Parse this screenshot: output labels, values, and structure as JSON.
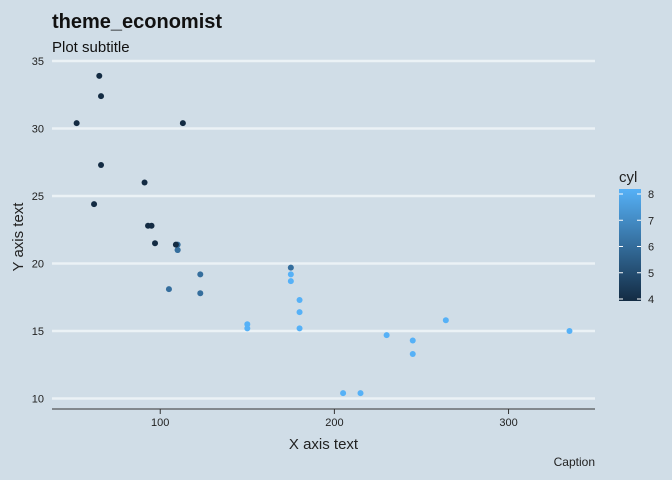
{
  "chart_data": {
    "type": "scatter",
    "title": "theme_economist",
    "subtitle": "Plot subtitle",
    "xlabel": "X axis text",
    "ylabel": "Y axis text",
    "caption": "Caption",
    "xlim": [
      37.85,
      349.65
    ],
    "ylim": [
      9.225,
      35.075
    ],
    "x_ticks": [
      100,
      200,
      300
    ],
    "y_ticks": [
      10,
      15,
      20,
      25,
      30,
      35
    ],
    "grid": "horizontal major",
    "legend": {
      "title": "cyl",
      "position": "right",
      "range": [
        4,
        8
      ],
      "ticks": [
        4,
        5,
        6,
        7,
        8
      ],
      "low_color": "#132B43",
      "high_color": "#56B1F7"
    },
    "points": [
      {
        "x": 110,
        "y": 21.0,
        "cyl": 6
      },
      {
        "x": 110,
        "y": 21.0,
        "cyl": 6
      },
      {
        "x": 93,
        "y": 22.8,
        "cyl": 4
      },
      {
        "x": 110,
        "y": 21.4,
        "cyl": 6
      },
      {
        "x": 175,
        "y": 18.7,
        "cyl": 8
      },
      {
        "x": 105,
        "y": 18.1,
        "cyl": 6
      },
      {
        "x": 245,
        "y": 14.3,
        "cyl": 8
      },
      {
        "x": 62,
        "y": 24.4,
        "cyl": 4
      },
      {
        "x": 95,
        "y": 22.8,
        "cyl": 4
      },
      {
        "x": 123,
        "y": 19.2,
        "cyl": 6
      },
      {
        "x": 123,
        "y": 17.8,
        "cyl": 6
      },
      {
        "x": 180,
        "y": 16.4,
        "cyl": 8
      },
      {
        "x": 180,
        "y": 17.3,
        "cyl": 8
      },
      {
        "x": 180,
        "y": 15.2,
        "cyl": 8
      },
      {
        "x": 205,
        "y": 10.4,
        "cyl": 8
      },
      {
        "x": 215,
        "y": 10.4,
        "cyl": 8
      },
      {
        "x": 230,
        "y": 14.7,
        "cyl": 8
      },
      {
        "x": 66,
        "y": 32.4,
        "cyl": 4
      },
      {
        "x": 52,
        "y": 30.4,
        "cyl": 4
      },
      {
        "x": 65,
        "y": 33.9,
        "cyl": 4
      },
      {
        "x": 97,
        "y": 21.5,
        "cyl": 4
      },
      {
        "x": 150,
        "y": 15.5,
        "cyl": 8
      },
      {
        "x": 150,
        "y": 15.2,
        "cyl": 8
      },
      {
        "x": 245,
        "y": 13.3,
        "cyl": 8
      },
      {
        "x": 175,
        "y": 19.2,
        "cyl": 8
      },
      {
        "x": 66,
        "y": 27.3,
        "cyl": 4
      },
      {
        "x": 91,
        "y": 26.0,
        "cyl": 4
      },
      {
        "x": 113,
        "y": 30.4,
        "cyl": 4
      },
      {
        "x": 264,
        "y": 15.8,
        "cyl": 8
      },
      {
        "x": 175,
        "y": 19.7,
        "cyl": 6
      },
      {
        "x": 335,
        "y": 15.0,
        "cyl": 8
      },
      {
        "x": 109,
        "y": 21.4,
        "cyl": 4
      }
    ]
  }
}
